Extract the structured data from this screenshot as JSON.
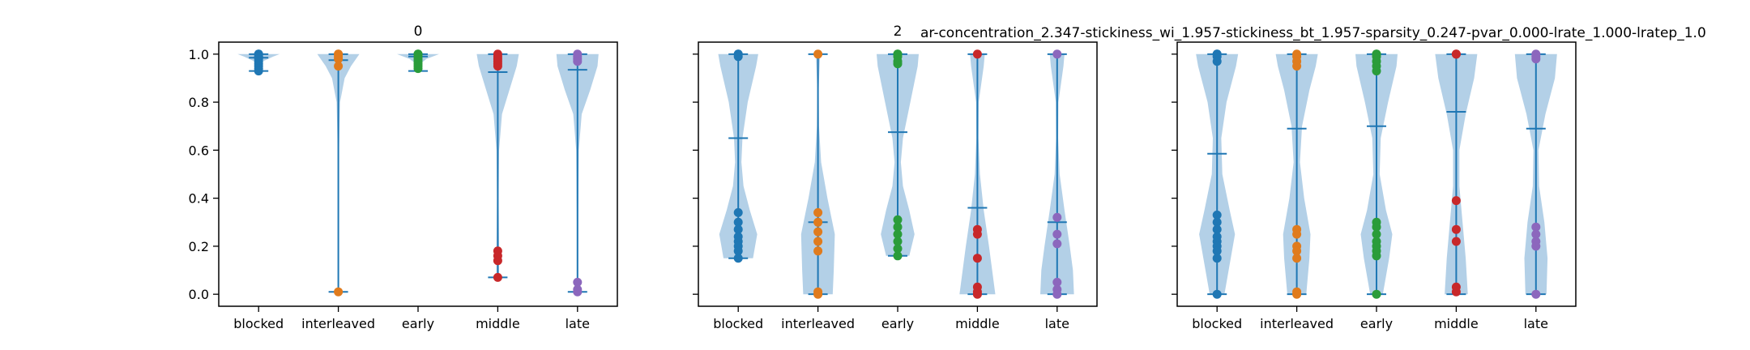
{
  "figure_title": "ar-concentration_2.347-stickiness_wi_1.957-stickiness_bt_1.957-sparsity_0.247-pvar_0.000-lrate_1.000-lratep_1.0",
  "colors": {
    "violin_fill": "#a6c8e3",
    "line": "#1f77b4",
    "blocked": "#1f77b4",
    "interleaved": "#e07b1d",
    "early": "#2a9c3a",
    "middle": "#c8282a",
    "late": "#8c67bd"
  },
  "chart_data": [
    {
      "type": "violin",
      "title": "0",
      "categories": [
        "blocked",
        "interleaved",
        "early",
        "middle",
        "late"
      ],
      "ylim": [
        -0.05,
        1.05
      ],
      "yticks": [
        "0.0",
        "0.2",
        "0.4",
        "0.6",
        "0.8",
        "1.0"
      ],
      "grid": false,
      "series": [
        {
          "name": "blocked",
          "min": 0.93,
          "max": 1.0,
          "mean": 0.985,
          "points": [
            1.0,
            1.0,
            0.99,
            0.99,
            0.98,
            0.97,
            0.96,
            0.95,
            0.94,
            0.93
          ],
          "density": [
            [
              0.93,
              0.03
            ],
            [
              0.95,
              0.08
            ],
            [
              0.97,
              0.2
            ],
            [
              0.99,
              0.7
            ],
            [
              1.0,
              1.0
            ]
          ]
        },
        {
          "name": "interleaved",
          "min": 0.01,
          "max": 1.0,
          "mean": 0.975,
          "points": [
            1.0,
            1.0,
            0.99,
            0.98,
            0.95,
            0.01
          ],
          "density": [
            [
              0.01,
              0.02
            ],
            [
              0.3,
              0.02
            ],
            [
              0.6,
              0.03
            ],
            [
              0.8,
              0.08
            ],
            [
              0.9,
              0.3
            ],
            [
              0.95,
              0.6
            ],
            [
              1.0,
              1.0
            ]
          ]
        },
        {
          "name": "early",
          "min": 0.93,
          "max": 1.0,
          "mean": 0.99,
          "points": [
            1.0,
            1.0,
            0.99,
            0.98,
            0.97,
            0.96,
            0.95,
            0.94
          ],
          "density": [
            [
              0.93,
              0.02
            ],
            [
              0.96,
              0.1
            ],
            [
              0.98,
              0.4
            ],
            [
              1.0,
              1.0
            ]
          ]
        },
        {
          "name": "middle",
          "min": 0.07,
          "max": 1.0,
          "mean": 0.925,
          "points": [
            1.0,
            0.99,
            0.98,
            0.97,
            0.96,
            0.95,
            0.18,
            0.16,
            0.14,
            0.07
          ],
          "density": [
            [
              0.07,
              0.06
            ],
            [
              0.2,
              0.06
            ],
            [
              0.4,
              0.04
            ],
            [
              0.6,
              0.06
            ],
            [
              0.75,
              0.2
            ],
            [
              0.85,
              0.55
            ],
            [
              0.95,
              0.9
            ],
            [
              1.0,
              1.0
            ]
          ]
        },
        {
          "name": "late",
          "min": 0.01,
          "max": 1.0,
          "mean": 0.935,
          "points": [
            1.0,
            0.99,
            0.98,
            0.97,
            0.05,
            0.02,
            0.01
          ],
          "density": [
            [
              0.01,
              0.03
            ],
            [
              0.3,
              0.03
            ],
            [
              0.6,
              0.06
            ],
            [
              0.75,
              0.2
            ],
            [
              0.85,
              0.6
            ],
            [
              0.95,
              0.95
            ],
            [
              1.0,
              1.0
            ]
          ]
        }
      ]
    },
    {
      "type": "violin",
      "title": "2",
      "categories": [
        "blocked",
        "interleaved",
        "early",
        "middle",
        "late"
      ],
      "ylim": [
        -0.05,
        1.05
      ],
      "yticks": [],
      "grid": false,
      "series": [
        {
          "name": "blocked",
          "min": 0.15,
          "max": 1.0,
          "mean": 0.65,
          "points": [
            1.0,
            1.0,
            0.99,
            0.34,
            0.3,
            0.27,
            0.24,
            0.22,
            0.2,
            0.18,
            0.15
          ],
          "density": [
            [
              0.15,
              0.7
            ],
            [
              0.25,
              0.9
            ],
            [
              0.35,
              0.55
            ],
            [
              0.45,
              0.25
            ],
            [
              0.55,
              0.15
            ],
            [
              0.65,
              0.2
            ],
            [
              0.8,
              0.45
            ],
            [
              0.95,
              0.85
            ],
            [
              1.0,
              0.95
            ]
          ]
        },
        {
          "name": "interleaved",
          "min": 0.0,
          "max": 1.0,
          "mean": 0.3,
          "points": [
            1.0,
            0.34,
            0.3,
            0.26,
            0.22,
            0.18,
            0.01,
            0.0
          ],
          "density": [
            [
              0.0,
              0.7
            ],
            [
              0.1,
              0.75
            ],
            [
              0.25,
              0.8
            ],
            [
              0.4,
              0.45
            ],
            [
              0.55,
              0.15
            ],
            [
              0.7,
              0.05
            ],
            [
              0.85,
              0.03
            ],
            [
              1.0,
              0.1
            ]
          ]
        },
        {
          "name": "early",
          "min": 0.16,
          "max": 1.0,
          "mean": 0.675,
          "points": [
            1.0,
            1.0,
            0.99,
            0.97,
            0.96,
            0.31,
            0.28,
            0.25,
            0.22,
            0.19,
            0.16
          ],
          "density": [
            [
              0.16,
              0.55
            ],
            [
              0.25,
              0.8
            ],
            [
              0.35,
              0.55
            ],
            [
              0.45,
              0.25
            ],
            [
              0.55,
              0.15
            ],
            [
              0.65,
              0.25
            ],
            [
              0.8,
              0.6
            ],
            [
              0.95,
              0.95
            ],
            [
              1.0,
              1.0
            ]
          ]
        },
        {
          "name": "middle",
          "min": 0.0,
          "max": 1.0,
          "mean": 0.36,
          "points": [
            1.0,
            0.27,
            0.25,
            0.15,
            0.03,
            0.01,
            0.0
          ],
          "density": [
            [
              0.0,
              0.85
            ],
            [
              0.1,
              0.7
            ],
            [
              0.2,
              0.55
            ],
            [
              0.35,
              0.3
            ],
            [
              0.5,
              0.12
            ],
            [
              0.65,
              0.05
            ],
            [
              0.8,
              0.06
            ],
            [
              0.95,
              0.3
            ],
            [
              1.0,
              0.35
            ]
          ]
        },
        {
          "name": "late",
          "min": 0.0,
          "max": 1.0,
          "mean": 0.3,
          "points": [
            1.0,
            0.32,
            0.25,
            0.21,
            0.05,
            0.02,
            0.0
          ],
          "density": [
            [
              0.0,
              0.8
            ],
            [
              0.1,
              0.75
            ],
            [
              0.2,
              0.6
            ],
            [
              0.35,
              0.35
            ],
            [
              0.5,
              0.12
            ],
            [
              0.65,
              0.05
            ],
            [
              0.8,
              0.06
            ],
            [
              0.95,
              0.3
            ],
            [
              1.0,
              0.35
            ]
          ]
        }
      ]
    },
    {
      "type": "violin",
      "title": "",
      "categories": [
        "blocked",
        "interleaved",
        "early",
        "middle",
        "late"
      ],
      "ylim": [
        -0.05,
        1.05
      ],
      "yticks": [],
      "grid": false,
      "series": [
        {
          "name": "blocked",
          "min": 0.0,
          "max": 1.0,
          "mean": 0.585,
          "points": [
            1.0,
            1.0,
            0.99,
            0.97,
            0.33,
            0.3,
            0.27,
            0.24,
            0.22,
            0.2,
            0.18,
            0.15,
            0.0
          ],
          "density": [
            [
              0.0,
              0.35
            ],
            [
              0.15,
              0.65
            ],
            [
              0.25,
              0.85
            ],
            [
              0.35,
              0.6
            ],
            [
              0.5,
              0.25
            ],
            [
              0.65,
              0.2
            ],
            [
              0.8,
              0.45
            ],
            [
              0.95,
              0.9
            ],
            [
              1.0,
              1.0
            ]
          ]
        },
        {
          "name": "interleaved",
          "min": 0.0,
          "max": 1.0,
          "mean": 0.69,
          "points": [
            1.0,
            0.99,
            0.97,
            0.95,
            0.27,
            0.25,
            0.2,
            0.18,
            0.15,
            0.01,
            0.0
          ],
          "density": [
            [
              0.0,
              0.45
            ],
            [
              0.15,
              0.6
            ],
            [
              0.25,
              0.65
            ],
            [
              0.4,
              0.35
            ],
            [
              0.55,
              0.15
            ],
            [
              0.7,
              0.25
            ],
            [
              0.85,
              0.6
            ],
            [
              0.95,
              0.9
            ],
            [
              1.0,
              1.0
            ]
          ]
        },
        {
          "name": "early",
          "min": 0.0,
          "max": 1.0,
          "mean": 0.7,
          "points": [
            1.0,
            1.0,
            0.99,
            0.97,
            0.95,
            0.93,
            0.3,
            0.28,
            0.25,
            0.22,
            0.2,
            0.18,
            0.16,
            0.0
          ],
          "density": [
            [
              0.0,
              0.3
            ],
            [
              0.15,
              0.6
            ],
            [
              0.25,
              0.75
            ],
            [
              0.35,
              0.45
            ],
            [
              0.5,
              0.15
            ],
            [
              0.65,
              0.2
            ],
            [
              0.8,
              0.55
            ],
            [
              0.95,
              0.95
            ],
            [
              1.0,
              1.0
            ]
          ]
        },
        {
          "name": "middle",
          "min": 0.0,
          "max": 1.0,
          "mean": 0.76,
          "points": [
            1.0,
            1.0,
            0.39,
            0.27,
            0.22,
            0.03,
            0.01
          ],
          "density": [
            [
              0.0,
              0.55
            ],
            [
              0.15,
              0.45
            ],
            [
              0.3,
              0.3
            ],
            [
              0.45,
              0.15
            ],
            [
              0.6,
              0.15
            ],
            [
              0.75,
              0.45
            ],
            [
              0.9,
              0.85
            ],
            [
              1.0,
              1.0
            ]
          ]
        },
        {
          "name": "late",
          "min": 0.0,
          "max": 1.0,
          "mean": 0.69,
          "points": [
            1.0,
            0.99,
            0.98,
            0.28,
            0.25,
            0.22,
            0.2,
            0.0
          ],
          "density": [
            [
              0.0,
              0.5
            ],
            [
              0.15,
              0.55
            ],
            [
              0.3,
              0.4
            ],
            [
              0.45,
              0.15
            ],
            [
              0.6,
              0.12
            ],
            [
              0.75,
              0.45
            ],
            [
              0.9,
              0.9
            ],
            [
              1.0,
              1.0
            ]
          ]
        }
      ]
    }
  ]
}
